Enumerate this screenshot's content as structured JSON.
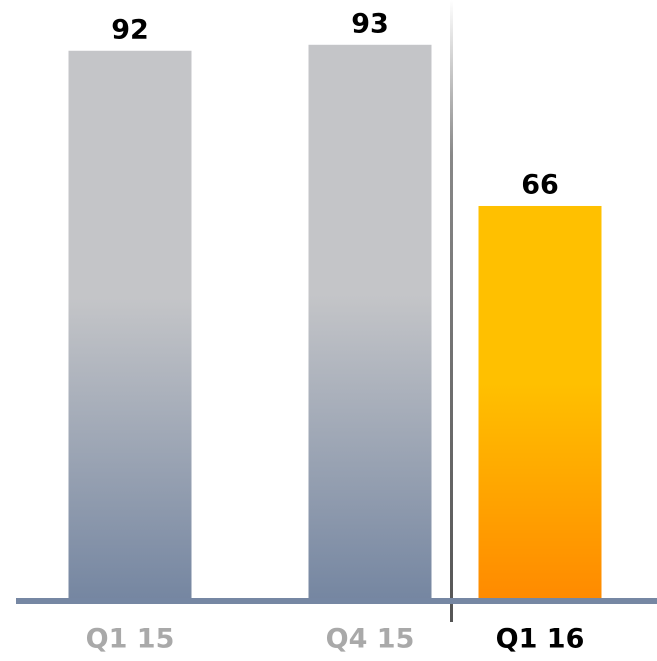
{
  "chart_data": {
    "type": "bar",
    "categories": [
      "Q1 15",
      "Q4 15",
      "Q1 16"
    ],
    "values": [
      92,
      93,
      66
    ],
    "colors": [
      [
        "#c4c5c8",
        "#7586a1"
      ],
      [
        "#c4c5c8",
        "#7586a1"
      ],
      [
        "#ffc000",
        "#ff8a00"
      ]
    ]
  }
}
